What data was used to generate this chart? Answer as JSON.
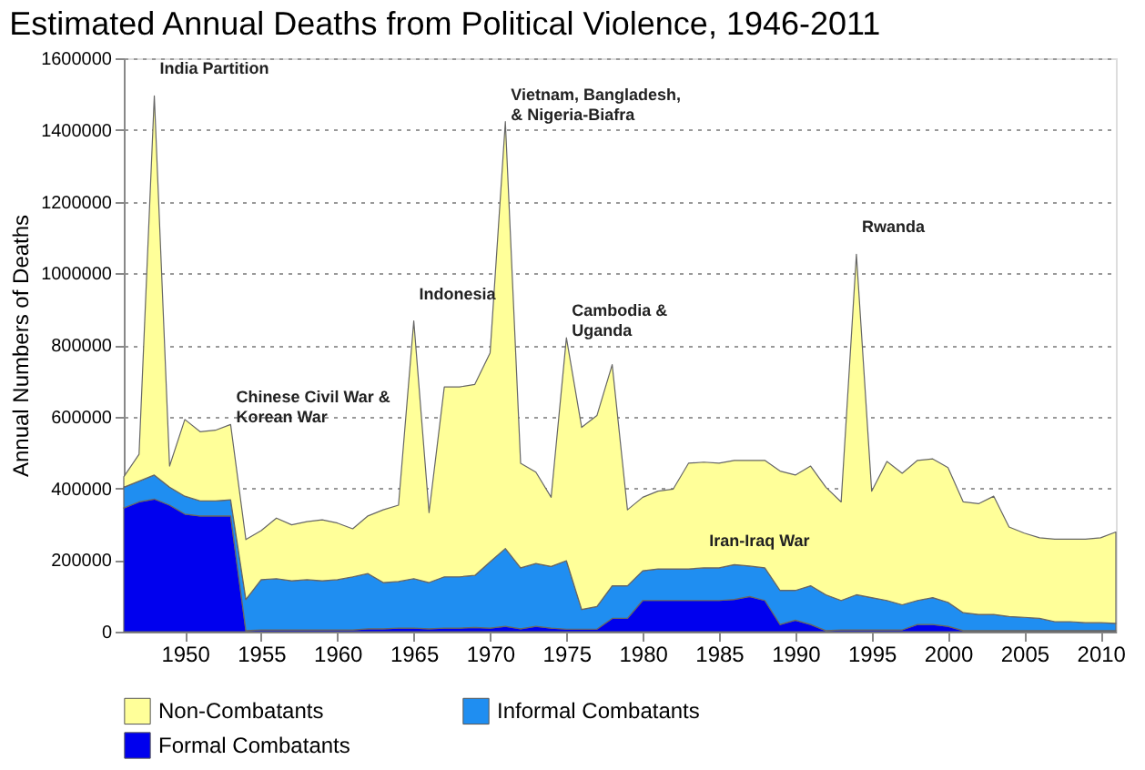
{
  "chart_data": {
    "type": "area",
    "stacked": true,
    "title": "Estimated Annual Deaths from Political Violence, 1946-2011",
    "ylabel": "Annual Numbers of Deaths",
    "x": [
      1946,
      1947,
      1948,
      1949,
      1950,
      1951,
      1952,
      1953,
      1954,
      1955,
      1956,
      1957,
      1958,
      1959,
      1960,
      1961,
      1962,
      1963,
      1964,
      1965,
      1966,
      1967,
      1968,
      1969,
      1970,
      1971,
      1972,
      1973,
      1974,
      1975,
      1976,
      1977,
      1978,
      1979,
      1980,
      1981,
      1982,
      1983,
      1984,
      1985,
      1986,
      1987,
      1988,
      1989,
      1990,
      1991,
      1992,
      1993,
      1994,
      1995,
      1996,
      1997,
      1998,
      1999,
      2000,
      2001,
      2002,
      2003,
      2004,
      2005,
      2006,
      2007,
      2008,
      2009,
      2010,
      2011
    ],
    "series": [
      {
        "name": "Formal Combatants",
        "color": "#0000ee",
        "values": [
          345000,
          362000,
          370000,
          353000,
          328000,
          323000,
          323000,
          323000,
          3000,
          5000,
          5000,
          5000,
          5000,
          5000,
          5000,
          5000,
          8000,
          8000,
          10000,
          10000,
          8000,
          10000,
          10000,
          12000,
          10000,
          15000,
          8000,
          15000,
          10000,
          7000,
          7000,
          7000,
          37000,
          37000,
          87000,
          87000,
          87000,
          87000,
          87000,
          87000,
          90000,
          98000,
          87000,
          20000,
          32000,
          20000,
          3000,
          5000,
          5000,
          5000,
          5000,
          5000,
          20000,
          20000,
          15000,
          3000,
          3000,
          3000,
          3000,
          3000,
          3000,
          3000,
          3000,
          3000,
          3000,
          3000
        ]
      },
      {
        "name": "Informal Combatants",
        "color": "#1f8ef1",
        "values": [
          58000,
          58000,
          67000,
          50000,
          50000,
          42000,
          42000,
          45000,
          87000,
          140000,
          143000,
          137000,
          140000,
          137000,
          140000,
          148000,
          154000,
          129000,
          130000,
          138000,
          129000,
          143000,
          143000,
          145000,
          185000,
          217000,
          170000,
          175000,
          172000,
          191000,
          55000,
          63000,
          91000,
          91000,
          83000,
          88000,
          88000,
          88000,
          91000,
          91000,
          97000,
          85000,
          91000,
          95000,
          83000,
          108000,
          100000,
          82000,
          98000,
          90000,
          82000,
          70000,
          67000,
          75000,
          67000,
          50000,
          45000,
          45000,
          39000,
          37000,
          34000,
          25000,
          25000,
          22000,
          22000,
          20000
        ]
      },
      {
        "name": "Non-Combatants",
        "color": "#ffff99",
        "values": [
          29000,
          75000,
          1058000,
          59000,
          214000,
          193000,
          197000,
          210000,
          167000,
          137000,
          169000,
          156000,
          162000,
          170000,
          158000,
          134000,
          161000,
          203000,
          213000,
          719000,
          195000,
          530000,
          530000,
          533000,
          583000,
          1191000,
          292000,
          255000,
          193000,
          622000,
          508000,
          533000,
          617000,
          212000,
          205000,
          217000,
          223000,
          295000,
          295000,
          292000,
          291000,
          295000,
          300000,
          333000,
          322000,
          334000,
          300000,
          275000,
          950000,
          297000,
          388000,
          367000,
          391000,
          387000,
          376000,
          309000,
          309000,
          330000,
          250000,
          235000,
          225000,
          230000,
          230000,
          233000,
          237000,
          255000
        ]
      }
    ],
    "xlim": [
      1946,
      2011
    ],
    "xticks": [
      1950,
      1955,
      1960,
      1965,
      1970,
      1975,
      1980,
      1985,
      1990,
      1995,
      2000,
      2005,
      2010
    ],
    "ylim": [
      0,
      1600000
    ],
    "yticks": [
      0,
      200000,
      400000,
      600000,
      800000,
      1000000,
      1200000,
      1400000,
      1600000
    ],
    "grid": "y",
    "legend": "bottom",
    "annotations": [
      {
        "text": "India Partition",
        "x": 1948,
        "y": 1495000
      },
      {
        "text": "Chinese Civil War &\nKorean War",
        "x": 1953,
        "y": 578000
      },
      {
        "text": "Indonesia",
        "x": 1965,
        "y": 867000
      },
      {
        "text": "Vietnam, Bangladesh,\n& Nigeria-Biafra",
        "x": 1971,
        "y": 1423000
      },
      {
        "text": "Cambodia &\nUganda",
        "x": 1975,
        "y": 820000
      },
      {
        "text": "Rwanda",
        "x": 1994,
        "y": 1053000
      },
      {
        "text": "Iran-Iraq War",
        "x": 1984,
        "y": 178000
      }
    ]
  }
}
